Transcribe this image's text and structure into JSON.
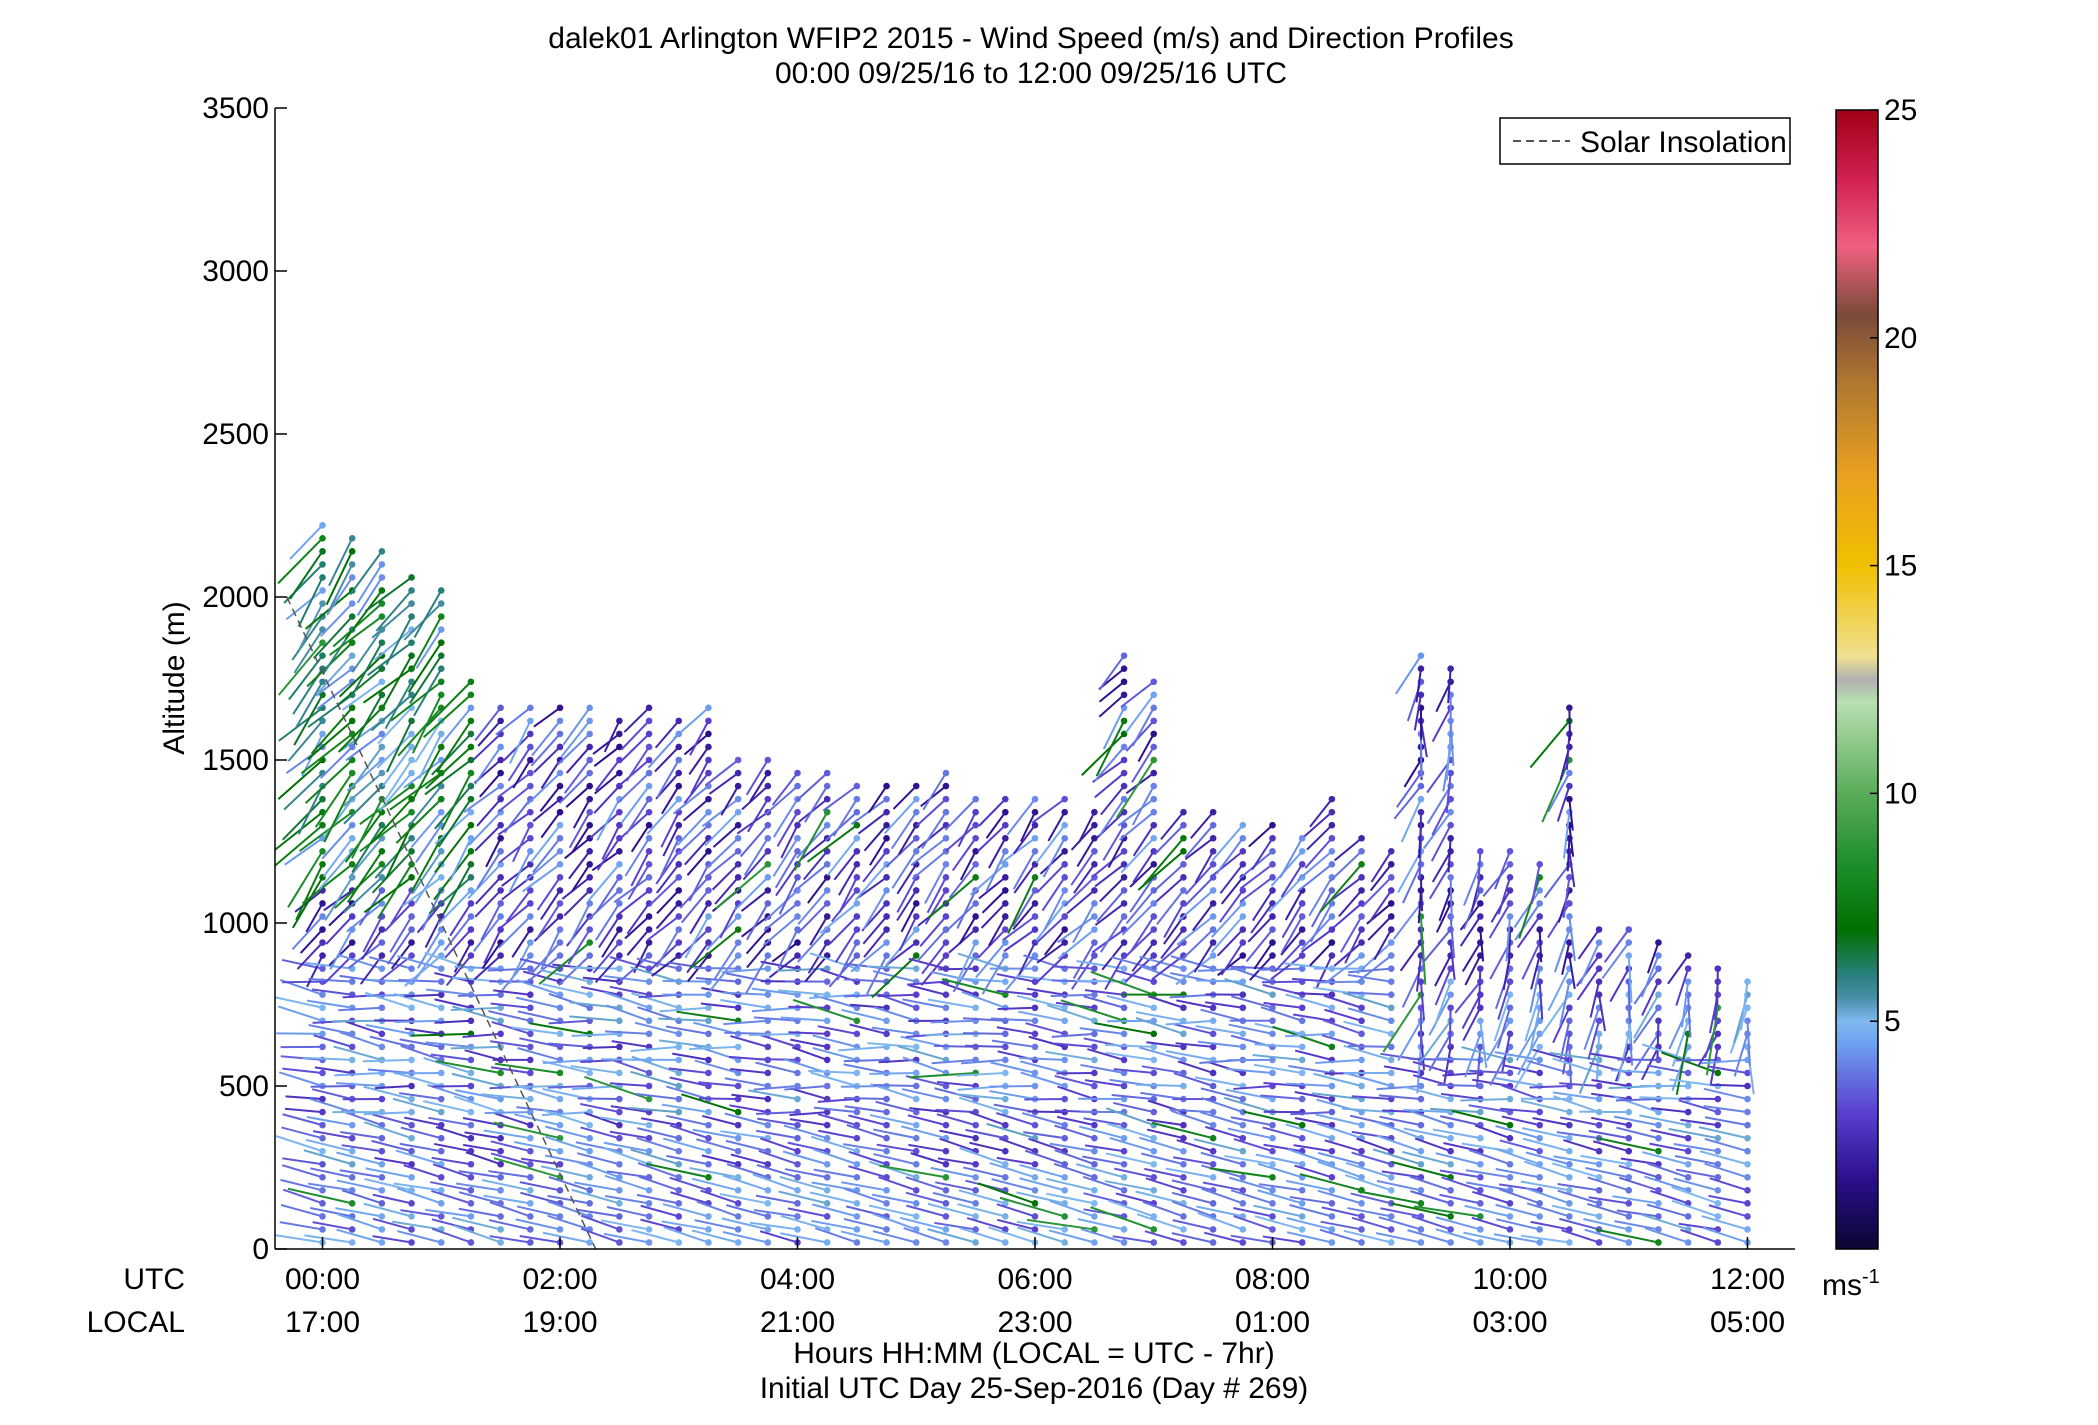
{
  "chart_data": {
    "type": "wind-barb-profile",
    "title": "dalek01 Arlington WFIP2 2015 - Wind Speed (m/s) and Direction Profiles",
    "subtitle": "00:00 09/25/16 to 12:00 09/25/16  UTC",
    "ylabel": "Altitude (m)",
    "ylim": [
      0,
      3500
    ],
    "yticks": [
      "0",
      "500",
      "1000",
      "1500",
      "2000",
      "2500",
      "3000",
      "3500"
    ],
    "xlim_hours": [
      -0.4,
      12.4
    ],
    "xticks_utc": [
      "00:00",
      "02:00",
      "04:00",
      "06:00",
      "08:00",
      "10:00",
      "12:00"
    ],
    "xticks_local": [
      "17:00",
      "19:00",
      "21:00",
      "23:00",
      "01:00",
      "03:00",
      "05:00"
    ],
    "x_row_labels": [
      "UTC",
      "LOCAL"
    ],
    "xlabel_line1": "Hours HH:MM  (LOCAL = UTC - 7hr)",
    "xlabel_line2": "Initial UTC Day 25-Sep-2016 (Day # 269)",
    "legend": {
      "entries": [
        "Solar Insolation"
      ],
      "placement": "top-right",
      "line_style": "dashed",
      "line_color": "#555555"
    },
    "colorbar": {
      "range": [
        0,
        25
      ],
      "ticks": [
        "5",
        "10",
        "15",
        "20",
        "25"
      ],
      "unit_label": "ms",
      "unit_exponent": "-1",
      "stops": [
        {
          "v": 0,
          "c": "#0b0630"
        },
        {
          "v": 1.5,
          "c": "#2a0e8a"
        },
        {
          "v": 3,
          "c": "#5a3fd0"
        },
        {
          "v": 4.5,
          "c": "#6ea0f0"
        },
        {
          "v": 5,
          "c": "#7fb8f0"
        },
        {
          "v": 5.5,
          "c": "#4a8fa8"
        },
        {
          "v": 6,
          "c": "#2a8080"
        },
        {
          "v": 7,
          "c": "#007000"
        },
        {
          "v": 8.5,
          "c": "#1f8f2f"
        },
        {
          "v": 10,
          "c": "#5aac5a"
        },
        {
          "v": 12,
          "c": "#b8e0b0"
        },
        {
          "v": 12.5,
          "c": "#b0b0b0"
        },
        {
          "v": 13,
          "c": "#f0e090"
        },
        {
          "v": 15,
          "c": "#f0c000"
        },
        {
          "v": 17,
          "c": "#e8a020"
        },
        {
          "v": 19,
          "c": "#b07830"
        },
        {
          "v": 20.5,
          "c": "#7a4a3a"
        },
        {
          "v": 22,
          "c": "#f06080"
        },
        {
          "v": 23.5,
          "c": "#d02050"
        },
        {
          "v": 25,
          "c": "#a00018"
        }
      ]
    },
    "solar_insolation": {
      "x_hours": [
        -0.3,
        2.3
      ],
      "y_m": [
        2000,
        0
      ]
    },
    "series": [
      {
        "t": 0.0,
        "top": 2230
      },
      {
        "t": 0.25,
        "top": 2200
      },
      {
        "t": 0.5,
        "top": 2150
      },
      {
        "t": 0.75,
        "top": 2080
      },
      {
        "t": 1.0,
        "top": 2030
      },
      {
        "t": 1.25,
        "top": 1760
      },
      {
        "t": 1.5,
        "top": 1690
      },
      {
        "t": 1.75,
        "top": 1680
      },
      {
        "t": 2.0,
        "top": 1670
      },
      {
        "t": 2.25,
        "top": 1660
      },
      {
        "t": 2.5,
        "top": 1650
      },
      {
        "t": 2.75,
        "top": 1690
      },
      {
        "t": 3.0,
        "top": 1640
      },
      {
        "t": 3.25,
        "top": 1690
      },
      {
        "t": 3.5,
        "top": 1520
      },
      {
        "t": 3.75,
        "top": 1500
      },
      {
        "t": 4.0,
        "top": 1480
      },
      {
        "t": 4.25,
        "top": 1460
      },
      {
        "t": 4.5,
        "top": 1440
      },
      {
        "t": 4.75,
        "top": 1430
      },
      {
        "t": 5.0,
        "top": 1420
      },
      {
        "t": 5.25,
        "top": 1480
      },
      {
        "t": 5.5,
        "top": 1410
      },
      {
        "t": 5.75,
        "top": 1400
      },
      {
        "t": 6.0,
        "top": 1390
      },
      {
        "t": 6.25,
        "top": 1380
      },
      {
        "t": 6.5,
        "top": 1370
      },
      {
        "t": 6.75,
        "top": 1850
      },
      {
        "t": 7.0,
        "top": 1770
      },
      {
        "t": 7.25,
        "top": 1350
      },
      {
        "t": 7.5,
        "top": 1340
      },
      {
        "t": 7.75,
        "top": 1320
      },
      {
        "t": 8.0,
        "top": 1300
      },
      {
        "t": 8.25,
        "top": 1290
      },
      {
        "t": 8.5,
        "top": 1400
      },
      {
        "t": 8.75,
        "top": 1260
      },
      {
        "t": 9.0,
        "top": 1250
      },
      {
        "t": 9.25,
        "top": 1840
      },
      {
        "t": 9.5,
        "top": 1780
      },
      {
        "t": 9.75,
        "top": 1230
      },
      {
        "t": 10.0,
        "top": 1220
      },
      {
        "t": 10.25,
        "top": 1210
      },
      {
        "t": 10.5,
        "top": 1680
      },
      {
        "t": 10.75,
        "top": 1000
      },
      {
        "t": 11.0,
        "top": 990
      },
      {
        "t": 11.25,
        "top": 960
      },
      {
        "t": 11.5,
        "top": 930
      },
      {
        "t": 11.75,
        "top": 880
      },
      {
        "t": 12.0,
        "top": 850
      }
    ]
  }
}
